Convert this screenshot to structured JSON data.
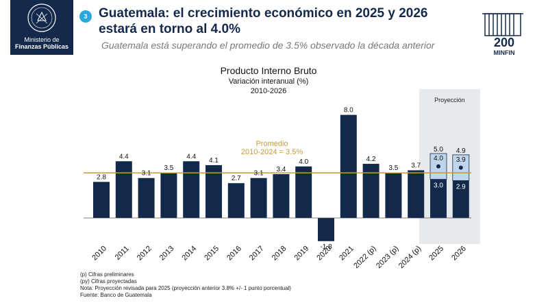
{
  "header": {
    "ministry_line1": "Ministerio de",
    "ministry_line2": "Finanzas Públicas",
    "slide_number": "3",
    "title": "Guatemala: el crecimiento económico en 2025 y 2026 estará en torno al 4.0%",
    "subtitle": "Guatemala está superando el promedio de 3.5% observado la década anterior",
    "brand_number": "200",
    "brand_name": "MINFIN"
  },
  "chart_data": {
    "type": "bar",
    "title": "Producto Interno Bruto",
    "subtitle": "Variación interanual (%)",
    "period": "2010-2026",
    "categories": [
      "2010",
      "2011",
      "2012",
      "2013",
      "2014",
      "2015",
      "2016",
      "2017",
      "2018",
      "2019",
      "2020",
      "2021",
      "2022 (p)",
      "2023 (p)",
      "2024 (p)",
      "2025",
      "2026"
    ],
    "values": [
      2.8,
      4.4,
      3.1,
      3.5,
      4.4,
      4.1,
      2.7,
      3.1,
      3.4,
      4.0,
      -1.8,
      8.0,
      4.2,
      3.5,
      3.7,
      3.0,
      2.9
    ],
    "value_labels": [
      "2.8",
      "4.4",
      "3.1",
      "3.5",
      "4.4",
      "4.1",
      "2.7",
      "3.1",
      "3.4",
      "4.0",
      "-1.8",
      "8.0",
      "4.2",
      "3.5",
      "3.7",
      "3.0",
      "2.9"
    ],
    "projection": {
      "label": "Proyección",
      "categories": [
        "2025",
        "2026"
      ],
      "base": [
        3.0,
        2.9
      ],
      "central": [
        4.0,
        3.9
      ],
      "upper": [
        5.0,
        4.9
      ],
      "base_labels": [
        "3.0",
        "2.9"
      ],
      "central_labels": [
        "4.0",
        "3.9"
      ],
      "upper_labels": [
        "5.0",
        "4.9"
      ]
    },
    "average": {
      "value": 3.5,
      "label_line1": "Promedio",
      "label_line2": "2010-2024 = 3.5%"
    },
    "ylim": [
      -2.5,
      8.5
    ],
    "xlabel": "",
    "ylabel": ""
  },
  "notes": [
    "(p) Cifras preliminares",
    "(py) Cifras proyectadas",
    "Nota: Proyección revisada para 2025 (proyección anterior 3.8% +/- 1 punto porcentual)",
    "Fuente: Banco de Guatemala"
  ],
  "colors": {
    "bar": "#13294b",
    "projection_box": "#bed5ec",
    "projection_bg": "#e6eaec",
    "average_line": "#c79a3a",
    "accent": "#29a8e0"
  }
}
